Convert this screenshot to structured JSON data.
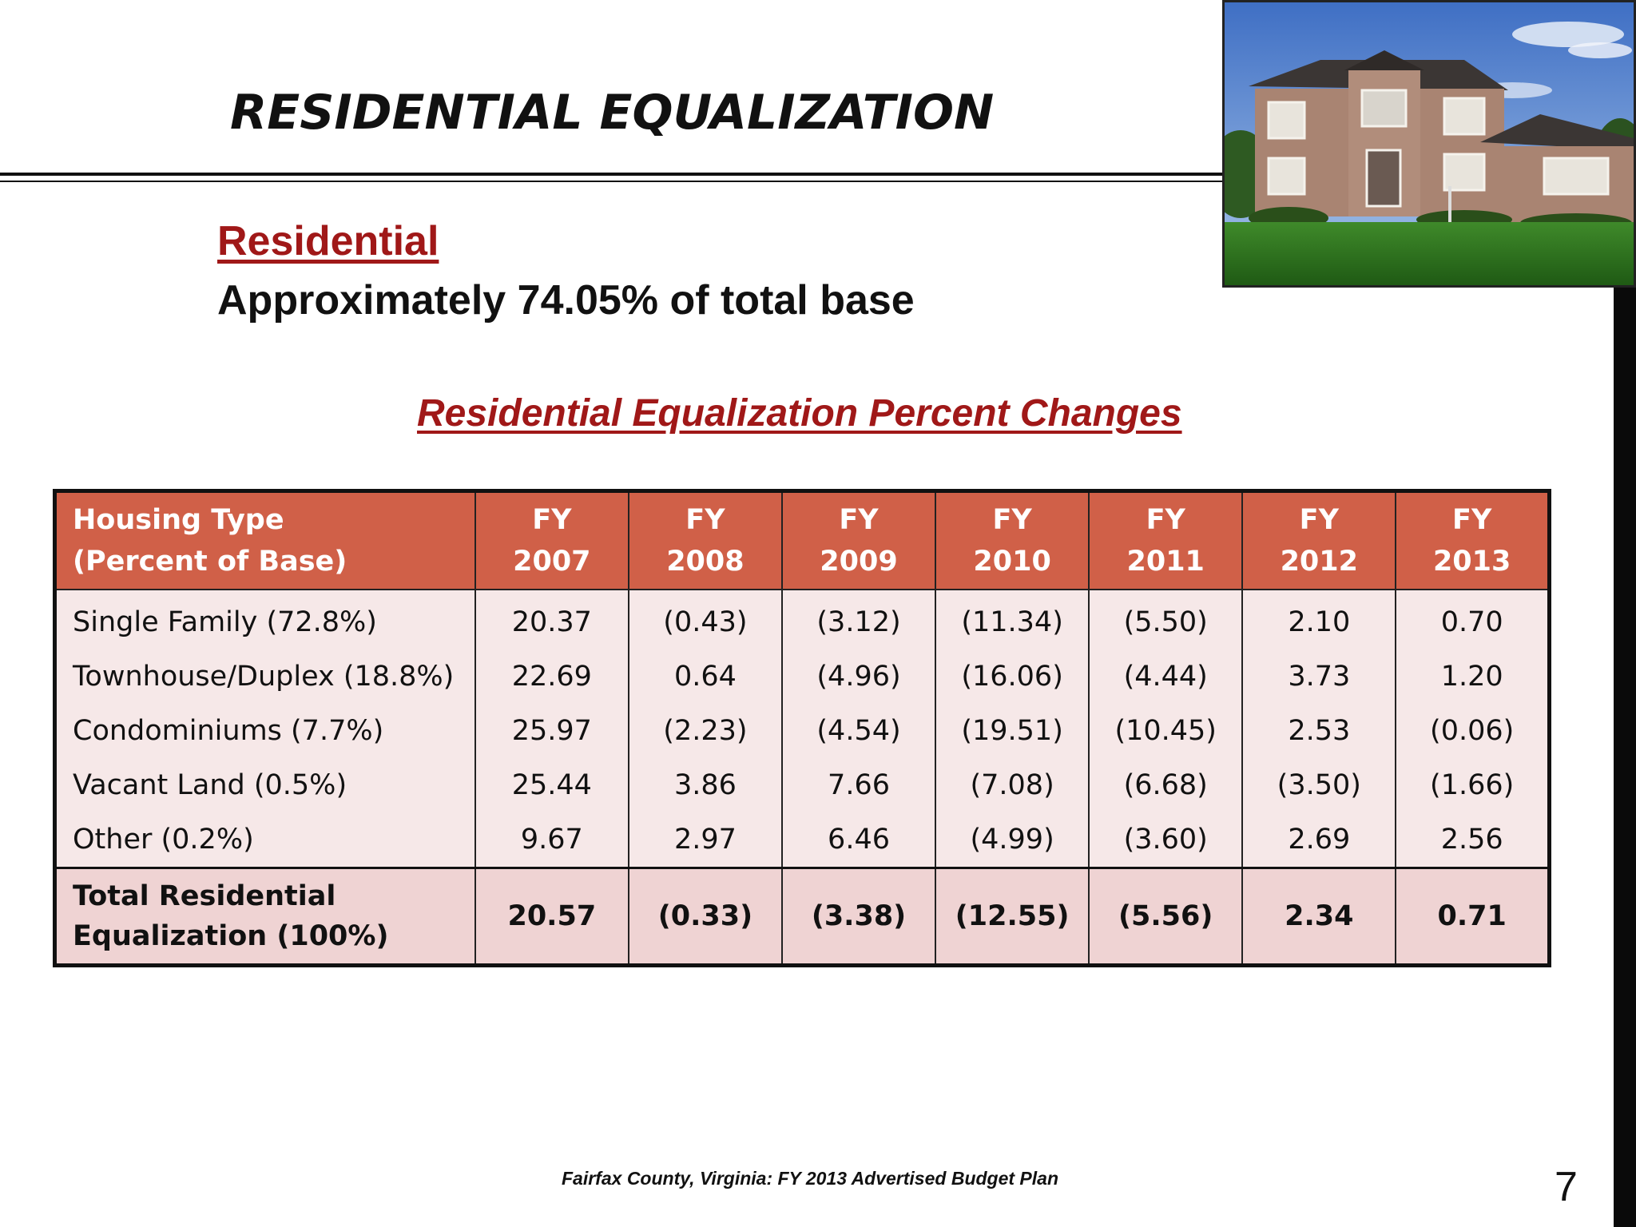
{
  "slide": {
    "title": "RESIDENTIAL EQUALIZATION",
    "section_heading": "Residential",
    "section_sub": "Approximately 74.05% of total base",
    "table_title": "Residential Equalization Percent Changes",
    "footer": "Fairfax County, Virginia: FY 2013 Advertised Budget Plan",
    "page_number": "7"
  },
  "table": {
    "header": {
      "label_line1": "Housing Type",
      "label_line2": "(Percent of Base)",
      "years": [
        {
          "l1": "FY",
          "l2": "2007"
        },
        {
          "l1": "FY",
          "l2": "2008"
        },
        {
          "l1": "FY",
          "l2": "2009"
        },
        {
          "l1": "FY",
          "l2": "2010"
        },
        {
          "l1": "FY",
          "l2": "2011"
        },
        {
          "l1": "FY",
          "l2": "2012"
        },
        {
          "l1": "FY",
          "l2": "2013"
        }
      ]
    },
    "rows": [
      {
        "label": "Single Family (72.8%)",
        "values": [
          "20.37",
          "(0.43)",
          "(3.12)",
          "(11.34)",
          "(5.50)",
          "2.10",
          "0.70"
        ]
      },
      {
        "label": "Townhouse/Duplex (18.8%)",
        "values": [
          "22.69",
          "0.64",
          "(4.96)",
          "(16.06)",
          "(4.44)",
          "3.73",
          "1.20"
        ]
      },
      {
        "label": "Condominiums (7.7%)",
        "values": [
          "25.97",
          "(2.23)",
          "(4.54)",
          "(19.51)",
          "(10.45)",
          "2.53",
          "(0.06)"
        ]
      },
      {
        "label": "Vacant Land (0.5%)",
        "values": [
          "25.44",
          "3.86",
          "7.66",
          "(7.08)",
          "(6.68)",
          "(3.50)",
          "(1.66)"
        ]
      },
      {
        "label": "Other (0.2%)",
        "values": [
          "9.67",
          "2.97",
          "6.46",
          "(4.99)",
          "(3.60)",
          "2.69",
          "2.56"
        ]
      }
    ],
    "total": {
      "label_line1": "Total Residential",
      "label_line2": "Equalization (100%)",
      "values": [
        "20.57",
        "(0.33)",
        "(3.38)",
        "(12.55)",
        "(5.56)",
        "2.34",
        "0.71"
      ]
    }
  },
  "colors": {
    "header_bg": "#d06048",
    "row_bg": "#f6e8e8",
    "total_bg": "#efd3d3",
    "accent_red": "#a01818"
  }
}
